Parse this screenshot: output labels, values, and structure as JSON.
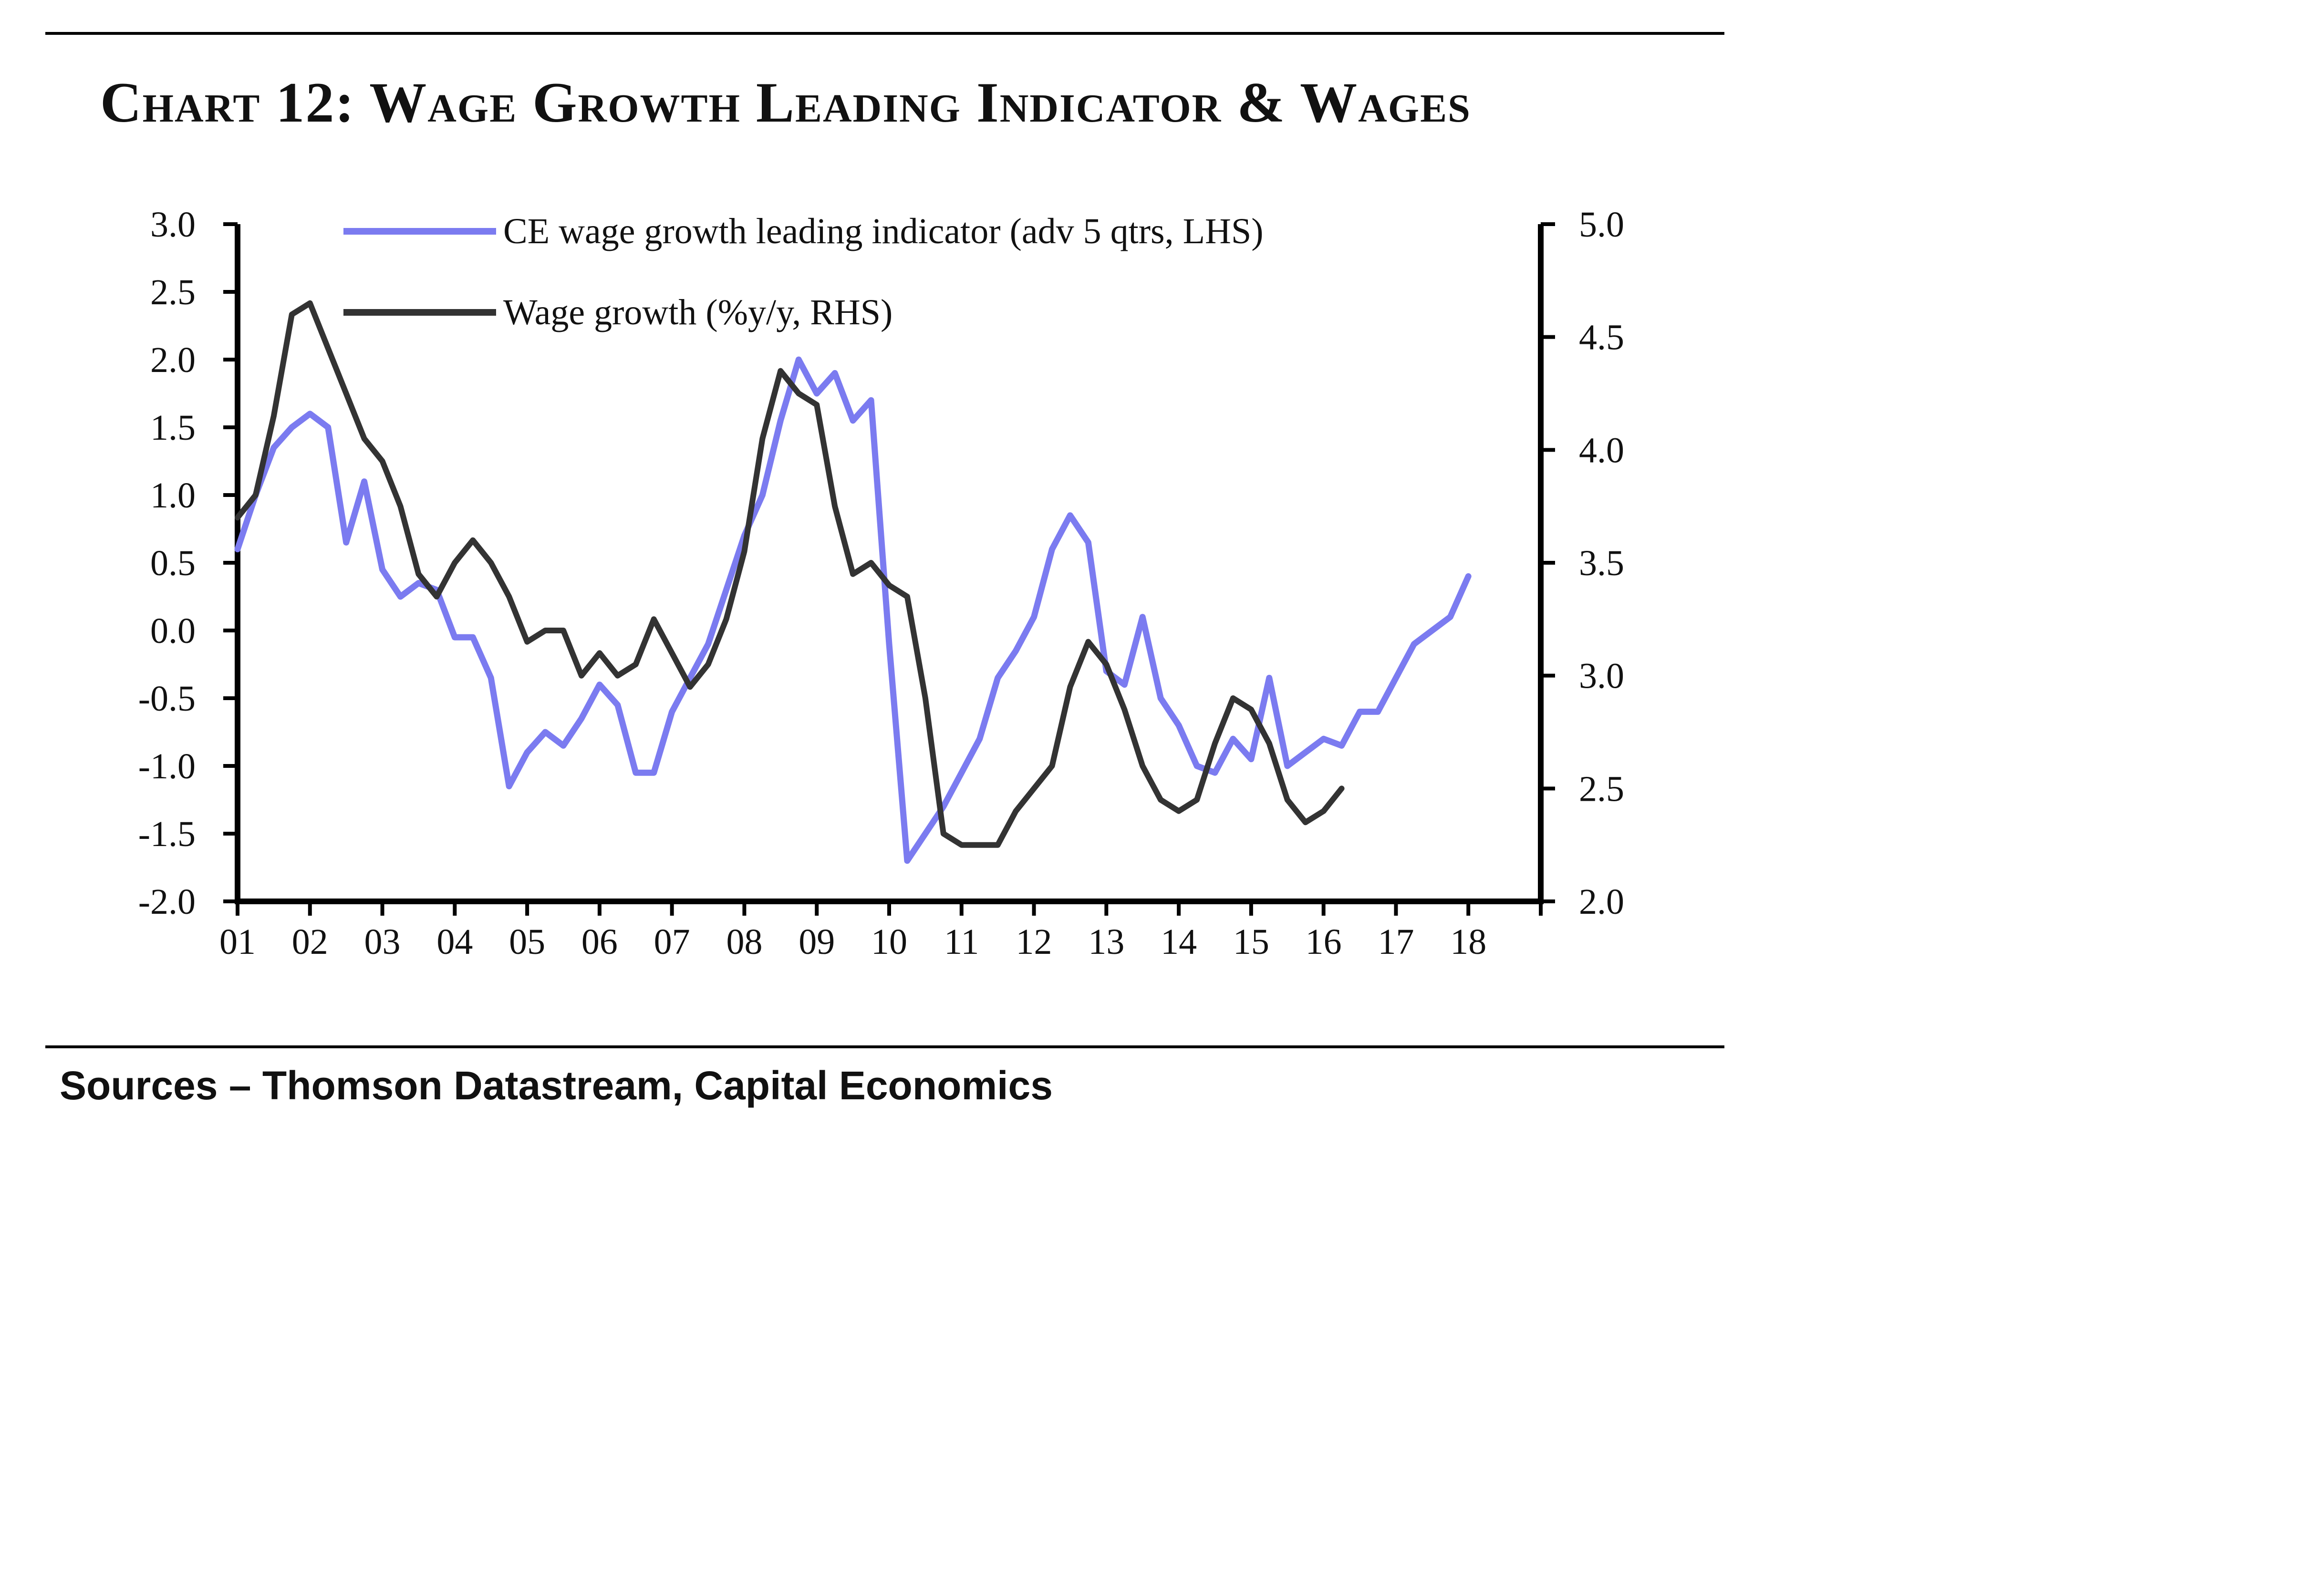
{
  "chart_data": {
    "type": "line",
    "title": "Chart 12: Wage Growth Leading Indicator & Wages",
    "source": "Sources – Thomson Datastream, Capital Economics",
    "x_tick_labels": [
      "01",
      "02",
      "03",
      "04",
      "05",
      "06",
      "07",
      "08",
      "09",
      "10",
      "11",
      "12",
      "13",
      "14",
      "15",
      "16",
      "17",
      "18"
    ],
    "xlim": [
      2001,
      2019
    ],
    "y_left": {
      "ticks": [
        "3.0",
        "2.5",
        "2.0",
        "1.5",
        "1.0",
        "0.5",
        "0.0",
        "-0.5",
        "-1.0",
        "-1.5",
        "-2.0"
      ],
      "ylim": [
        -2.0,
        3.0
      ]
    },
    "y_right": {
      "ticks": [
        "5.0",
        "4.5",
        "4.0",
        "3.5",
        "3.0",
        "2.5",
        "2.0"
      ],
      "ylim": [
        2.0,
        5.0
      ]
    },
    "legend_placement": "top",
    "series": [
      {
        "name": "CE wage growth leading indicator (adv 5 qtrs, LHS)",
        "axis": "left",
        "color": "#7b7bf0",
        "x": [
          2001.0,
          2001.25,
          2001.5,
          2001.75,
          2002.0,
          2002.25,
          2002.5,
          2002.75,
          2003.0,
          2003.25,
          2003.5,
          2003.75,
          2004.0,
          2004.25,
          2004.5,
          2004.75,
          2005.0,
          2005.25,
          2005.5,
          2005.75,
          2006.0,
          2006.25,
          2006.5,
          2006.75,
          2007.0,
          2007.25,
          2007.5,
          2007.75,
          2008.0,
          2008.25,
          2008.5,
          2008.75,
          2009.0,
          2009.25,
          2009.5,
          2009.75,
          2010.0,
          2010.25,
          2010.5,
          2010.75,
          2011.0,
          2011.25,
          2011.5,
          2011.75,
          2012.0,
          2012.25,
          2012.5,
          2012.75,
          2013.0,
          2013.25,
          2013.5,
          2013.75,
          2014.0,
          2014.25,
          2014.5,
          2014.75,
          2015.0,
          2015.25,
          2015.5,
          2015.75,
          2016.0,
          2016.25,
          2016.5,
          2016.75,
          2017.0,
          2017.25,
          2017.5,
          2017.75,
          2018.0
        ],
        "values": [
          0.6,
          1.0,
          1.35,
          1.5,
          1.6,
          1.5,
          0.65,
          1.1,
          0.45,
          0.25,
          0.35,
          0.3,
          -0.05,
          -0.05,
          -0.35,
          -1.15,
          -0.9,
          -0.75,
          -0.85,
          -0.65,
          -0.4,
          -0.55,
          -1.05,
          -1.05,
          -0.6,
          -0.35,
          -0.1,
          0.3,
          0.7,
          1.0,
          1.55,
          2.0,
          1.75,
          1.9,
          1.55,
          1.7,
          -0.1,
          -1.7,
          -1.5,
          -1.3,
          -1.05,
          -0.8,
          -0.35,
          -0.15,
          0.1,
          0.6,
          0.85,
          0.65,
          -0.3,
          -0.4,
          0.1,
          -0.5,
          -0.7,
          -1.0,
          -1.05,
          -0.8,
          -0.95,
          -0.35,
          -1.0,
          -0.9,
          -0.8,
          -0.85,
          -0.6,
          -0.6,
          -0.35,
          -0.1,
          0.0,
          0.1,
          0.4
        ]
      },
      {
        "name": "Wage growth (%y/y, RHS)",
        "axis": "right",
        "color": "#333333",
        "x": [
          2001.0,
          2001.25,
          2001.5,
          2001.75,
          2002.0,
          2002.25,
          2002.5,
          2002.75,
          2003.0,
          2003.25,
          2003.5,
          2003.75,
          2004.0,
          2004.25,
          2004.5,
          2004.75,
          2005.0,
          2005.25,
          2005.5,
          2005.75,
          2006.0,
          2006.25,
          2006.5,
          2006.75,
          2007.0,
          2007.25,
          2007.5,
          2007.75,
          2008.0,
          2008.25,
          2008.5,
          2008.75,
          2009.0,
          2009.25,
          2009.5,
          2009.75,
          2010.0,
          2010.25,
          2010.5,
          2010.75,
          2011.0,
          2011.25,
          2011.5,
          2011.75,
          2012.0,
          2012.25,
          2012.5,
          2012.75,
          2013.0,
          2013.25,
          2013.5,
          2013.75,
          2014.0,
          2014.25,
          2014.5,
          2014.75,
          2015.0,
          2015.25,
          2015.5,
          2015.75,
          2016.0,
          2016.25
        ],
        "values": [
          3.7,
          3.8,
          4.15,
          4.6,
          4.65,
          4.45,
          4.25,
          4.05,
          3.95,
          3.75,
          3.45,
          3.35,
          3.5,
          3.6,
          3.5,
          3.35,
          3.15,
          3.2,
          3.2,
          3.0,
          3.1,
          3.0,
          3.05,
          3.25,
          3.1,
          2.95,
          3.05,
          3.25,
          3.55,
          4.05,
          4.35,
          4.25,
          4.2,
          3.75,
          3.45,
          3.5,
          3.4,
          3.35,
          2.9,
          2.3,
          2.25,
          2.25,
          2.25,
          2.4,
          2.5,
          2.6,
          2.95,
          3.15,
          3.05,
          2.85,
          2.6,
          2.45,
          2.4,
          2.45,
          2.7,
          2.9,
          2.85,
          2.7,
          2.45,
          2.35,
          2.4,
          2.5
        ]
      }
    ]
  }
}
